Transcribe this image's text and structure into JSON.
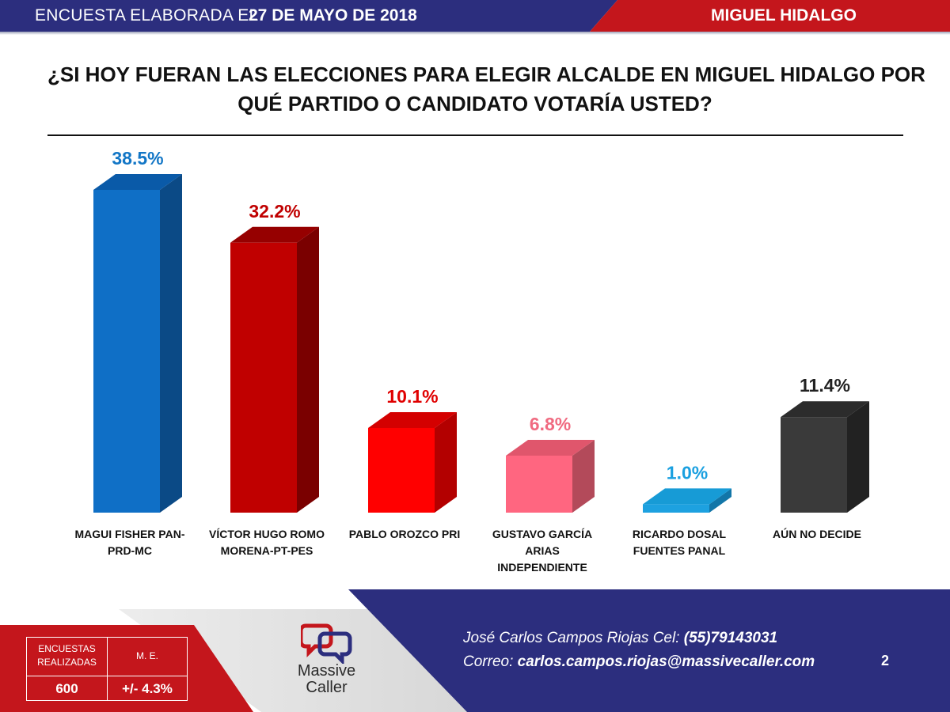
{
  "header": {
    "label": "ENCUESTA ELABORADA EL",
    "date": "27 DE MAYO DE 2018",
    "region": "MIGUEL HIDALGO"
  },
  "question": {
    "line1": "¿SI HOY FUERAN LAS ELECCIONES PARA ELEGIR ALCALDE EN MIGUEL HIDALGO POR",
    "line2": "QUÉ PARTIDO O CANDIDATO VOTARÍA USTED?"
  },
  "chart_data": {
    "type": "bar",
    "title": "¿SI HOY FUERAN LAS ELECCIONES PARA ELEGIR ALCALDE EN MIGUEL HIDALGO POR QUÉ PARTIDO O CANDIDATO VOTARÍA USTED?",
    "categories": [
      [
        "MAGUI FISHER PAN-",
        "PRD-MC"
      ],
      [
        "VÍCTOR HUGO ROMO",
        "MORENA-PT-PES"
      ],
      [
        "PABLO OROZCO PRI"
      ],
      [
        "GUSTAVO GARCÍA",
        "ARIAS",
        "INDEPENDIENTE"
      ],
      [
        "RICARDO DOSAL",
        "FUENTES PANAL"
      ],
      [
        "AÚN NO DECIDE"
      ]
    ],
    "values": [
      38.5,
      32.2,
      10.1,
      6.8,
      1.0,
      11.4
    ],
    "value_labels": [
      "38.5%",
      "32.2%",
      "10.1%",
      "6.8%",
      "1.0%",
      "11.4%"
    ],
    "colors": {
      "front": [
        "#0f6fc6",
        "#c00000",
        "#ff0000",
        "#ff6680",
        "#1da1e0",
        "#3a3a3a"
      ],
      "side": [
        "#0b4a86",
        "#7a0000",
        "#b30000",
        "#b34a5a",
        "#1276a8",
        "#222222"
      ],
      "top": [
        "#0a5aa8",
        "#960000",
        "#d40000",
        "#e0566c",
        "#179bd6",
        "#2c2c2c"
      ],
      "label": [
        "#1276c6",
        "#c00000",
        "#e00000",
        "#f06a80",
        "#1aa0e0",
        "#222222"
      ]
    },
    "ylim": [
      0,
      38.5
    ],
    "grid": false,
    "legend": "none",
    "style": "3d-column"
  },
  "footer": {
    "stats": {
      "surveys_label": "ENCUESTAS REALIZADAS",
      "surveys_value": "600",
      "me_label": "M. E.",
      "me_value": "+/- 4.3%"
    },
    "logo": {
      "word1": "Massive",
      "word2": "Caller",
      "icon": "speech-bubbles-icon"
    },
    "contact": {
      "name_text": "José Carlos Campos Riojas Cel: ",
      "phone": "(55)79143031",
      "email_label": "Correo: ",
      "email": "carlos.campos.riojas@massivecaller.com"
    },
    "page_number": "2"
  }
}
